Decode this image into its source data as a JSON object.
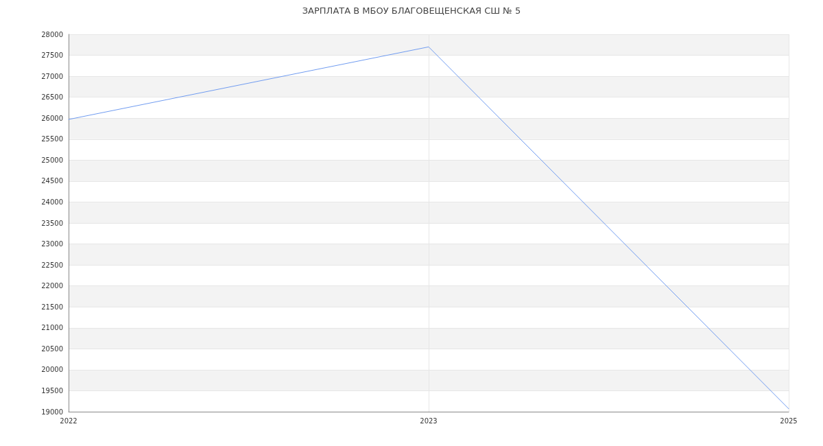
{
  "chart_data": {
    "type": "line",
    "title": "ЗАРПЛАТА В МБОУ БЛАГОВЕЩЕНСКАЯ СШ № 5",
    "categories": [
      "2022",
      "2023",
      "2025"
    ],
    "series": [
      {
        "color": "#6f9bf0",
        "values": [
          25970,
          27700,
          19070
        ]
      }
    ],
    "ylim": [
      19000,
      28000
    ],
    "yticks": [
      19000,
      19500,
      20000,
      20500,
      21000,
      21500,
      22000,
      22500,
      23000,
      23500,
      24000,
      24500,
      25000,
      25500,
      26000,
      26500,
      27000,
      27500,
      28000
    ],
    "grid": true,
    "marker": "none",
    "line_style": "solid"
  }
}
